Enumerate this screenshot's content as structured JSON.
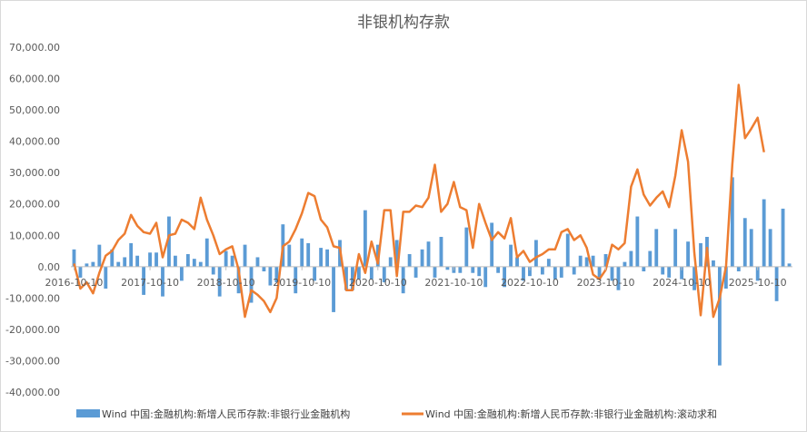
{
  "chart_data": {
    "type": "bar+line",
    "title": "非银机构存款",
    "xlabel": "",
    "ylabel": "",
    "ylim": [
      -40000,
      70000
    ],
    "y_ticks": [
      "70,000.00",
      "60,000.00",
      "50,000.00",
      "40,000.00",
      "30,000.00",
      "20,000.00",
      "10,000.00",
      "0.00",
      "-10,000.00",
      "-20,000.00",
      "-30,000.00",
      "-40,000.00"
    ],
    "x_tick_labels": [
      "2016-10-10",
      "2017-10-10",
      "2018-10-10",
      "2019-10-10",
      "2020-10-10",
      "2021-10-10",
      "2022-10-10",
      "2023-10-10",
      "2024-10-10",
      "2025-10-10"
    ],
    "x_tick_index": [
      0,
      12,
      24,
      36,
      48,
      60,
      72,
      84,
      96,
      108
    ],
    "grid": false,
    "legend_position": "bottom",
    "series": [
      {
        "name": "Wind 中国:金融机构:新增人民币存款:非银行业金融机构",
        "type": "bar",
        "color": "#5b9bd5",
        "values": [
          5500,
          -3500,
          1000,
          1500,
          7000,
          -7000,
          5500,
          1500,
          3000,
          7500,
          3500,
          -9000,
          4500,
          4500,
          -9500,
          16000,
          3500,
          -4500,
          4000,
          2500,
          1500,
          9000,
          -2500,
          -9500,
          5000,
          3500,
          -8500,
          7000,
          -11500,
          3000,
          -1500,
          -6000,
          -5000,
          13500,
          7000,
          -8500,
          9000,
          7500,
          -4500,
          6000,
          5500,
          -14500,
          8500,
          -7500,
          -7500,
          -4000,
          18000,
          -4000,
          7000,
          -5000,
          3000,
          8500,
          -8500,
          4000,
          -3500,
          5500,
          8000,
          -3500,
          9500,
          -1000,
          -2000,
          -2000,
          12500,
          -2000,
          -3000,
          -6500,
          14000,
          -2000,
          -6500,
          7000,
          3000,
          -4500,
          -3000,
          8500,
          -2500,
          2500,
          -4000,
          -3500,
          10500,
          -2500,
          3500,
          3000,
          3500,
          -4000,
          4000,
          -4500,
          -7500,
          1500,
          5000,
          16000,
          -1500,
          5000,
          12000,
          -2500,
          -3500,
          12000,
          -4000,
          8000,
          -7500,
          7500,
          9500,
          2000,
          -31500,
          -7000,
          28500,
          -1500,
          15500,
          12000,
          -4500,
          21500,
          12000,
          -11000,
          18500,
          1000
        ],
        "value_labels": []
      },
      {
        "name": "Wind 中国:金融机构:新增人民币存款:非银行业金融机构:滚动求和",
        "type": "line",
        "color": "#ed7d31",
        "values": [
          1000,
          -7000,
          -5000,
          -8500,
          -2000,
          3500,
          5000,
          8500,
          10500,
          16500,
          13000,
          11000,
          10500,
          14000,
          3000,
          10000,
          10500,
          15000,
          14000,
          12000,
          22000,
          15000,
          10000,
          4000,
          5500,
          6500,
          -1000,
          -16000,
          -7500,
          -9000,
          -11000,
          -14500,
          -10000,
          6500,
          8000,
          12000,
          17000,
          23500,
          22500,
          15000,
          12500,
          6500,
          6000,
          -7500,
          -7500,
          4000,
          -2000,
          8000,
          1000,
          18000,
          18000,
          -3000,
          17500,
          17500,
          19500,
          19000,
          22000,
          32500,
          17500,
          20000,
          27000,
          19000,
          18000,
          6000,
          20000,
          14000,
          8500,
          11000,
          9000,
          15500,
          3000,
          5000,
          1500,
          3000,
          4000,
          5500,
          5500,
          11000,
          12000,
          8500,
          10000,
          6000,
          -2500,
          -4000,
          -1000,
          7000,
          5500,
          7500,
          25500,
          31000,
          23000,
          19500,
          22000,
          24000,
          19000,
          29000,
          43500,
          33500,
          4500,
          -15500,
          6000,
          -16000,
          -10000,
          0,
          32500,
          58000,
          41000,
          44000,
          47500,
          36500
        ]
      }
    ]
  }
}
